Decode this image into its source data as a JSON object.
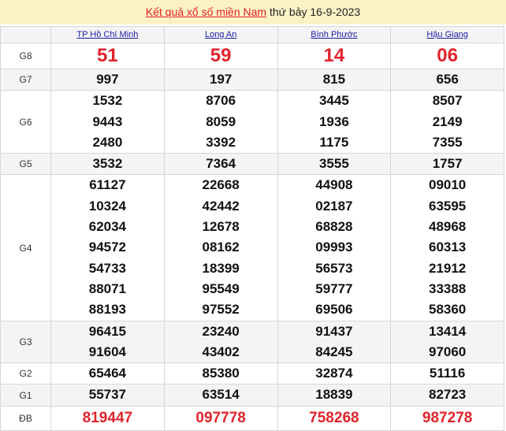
{
  "title": {
    "link": "Kết quả xổ số miền Nam",
    "rest": " thứ bảy 16-9-2023"
  },
  "provinces": [
    "TP Hồ Chí Minh",
    "Long An",
    "Bình Phước",
    "Hậu Giang"
  ],
  "prizes": [
    {
      "label": "G8",
      "style": "big",
      "values": [
        [
          "51"
        ],
        [
          "59"
        ],
        [
          "14"
        ],
        [
          "06"
        ]
      ]
    },
    {
      "label": "G7",
      "style": "n",
      "alt": true,
      "values": [
        [
          "997"
        ],
        [
          "197"
        ],
        [
          "815"
        ],
        [
          "656"
        ]
      ]
    },
    {
      "label": "G6",
      "style": "n",
      "values": [
        [
          "1532",
          "9443",
          "2480"
        ],
        [
          "8706",
          "8059",
          "3392"
        ],
        [
          "3445",
          "1936",
          "1175"
        ],
        [
          "8507",
          "2149",
          "7355"
        ]
      ]
    },
    {
      "label": "G5",
      "style": "n",
      "alt": true,
      "values": [
        [
          "3532"
        ],
        [
          "7364"
        ],
        [
          "3555"
        ],
        [
          "1757"
        ]
      ]
    },
    {
      "label": "G4",
      "style": "n",
      "values": [
        [
          "61127",
          "10324",
          "62034",
          "94572",
          "54733",
          "88071",
          "88193"
        ],
        [
          "22668",
          "42442",
          "12678",
          "08162",
          "18399",
          "95549",
          "97552"
        ],
        [
          "44908",
          "02187",
          "68828",
          "09993",
          "56573",
          "59777",
          "69506"
        ],
        [
          "09010",
          "63595",
          "48968",
          "60313",
          "21912",
          "33388",
          "58360"
        ]
      ]
    },
    {
      "label": "G3",
      "style": "n",
      "alt": true,
      "values": [
        [
          "96415",
          "91604"
        ],
        [
          "23240",
          "43402"
        ],
        [
          "91437",
          "84245"
        ],
        [
          "13414",
          "97060"
        ]
      ]
    },
    {
      "label": "G2",
      "style": "n",
      "values": [
        [
          "65464"
        ],
        [
          "85380"
        ],
        [
          "32874"
        ],
        [
          "51116"
        ]
      ]
    },
    {
      "label": "G1",
      "style": "n",
      "alt": true,
      "values": [
        [
          "55737"
        ],
        [
          "63514"
        ],
        [
          "18839"
        ],
        [
          "82723"
        ]
      ]
    },
    {
      "label": "ĐB",
      "style": "db",
      "values": [
        [
          "819447"
        ],
        [
          "097778"
        ],
        [
          "758268"
        ],
        [
          "987278"
        ]
      ]
    }
  ]
}
